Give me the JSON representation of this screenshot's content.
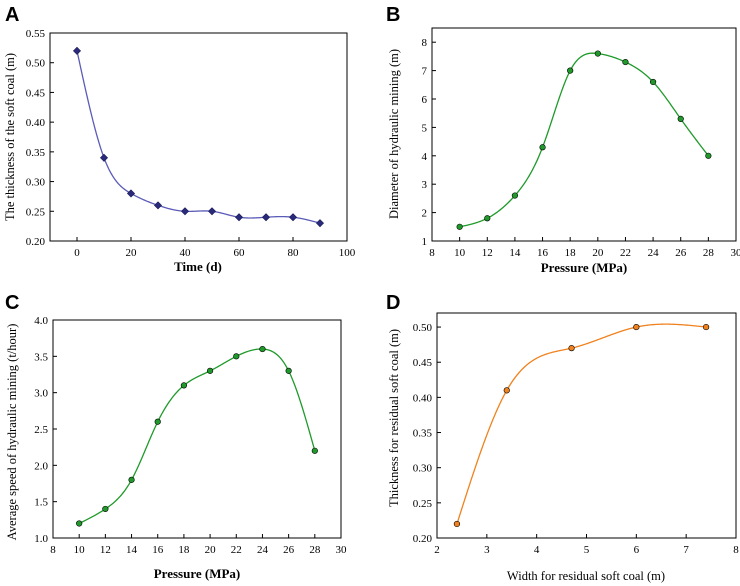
{
  "chart_data": [
    {
      "panel": "A",
      "type": "line",
      "xlabel": "Time (d)",
      "ylabel": "The thickness of the soft coal (m)",
      "xlim": [
        -10,
        100
      ],
      "ylim": [
        0.2,
        0.55
      ],
      "xticks": [
        0,
        20,
        40,
        60,
        80,
        100
      ],
      "yticks": [
        0.2,
        0.25,
        0.3,
        0.35,
        0.4,
        0.45,
        0.5,
        0.55
      ],
      "tick_decimals": 2,
      "marker": "diamond",
      "color": "#5b5bb8",
      "x": [
        0,
        10,
        20,
        30,
        40,
        50,
        60,
        70,
        80,
        90
      ],
      "y": [
        0.52,
        0.34,
        0.28,
        0.26,
        0.25,
        0.25,
        0.24,
        0.24,
        0.24,
        0.23
      ]
    },
    {
      "panel": "B",
      "type": "line",
      "xlabel": "Pressure (MPa)",
      "ylabel": "Diameter of hydraulic mining (m)",
      "xlim": [
        8,
        30
      ],
      "ylim": [
        1,
        8.5
      ],
      "xticks": [
        8,
        10,
        12,
        14,
        16,
        18,
        20,
        22,
        24,
        26,
        28,
        30
      ],
      "yticks": [
        1,
        2,
        3,
        4,
        5,
        6,
        7,
        8
      ],
      "tick_decimals": 0,
      "marker": "circle",
      "color": "#1f9a2a",
      "x": [
        10,
        12,
        14,
        16,
        18,
        20,
        22,
        24,
        26,
        28
      ],
      "y": [
        1.5,
        1.8,
        2.6,
        4.3,
        7.0,
        7.6,
        7.3,
        6.6,
        5.3,
        4.0
      ]
    },
    {
      "panel": "C",
      "type": "line",
      "xlabel": "Pressure (MPa)",
      "ylabel": "Average speed of hydraulic mining (t/hour)",
      "xlim": [
        8,
        30
      ],
      "ylim": [
        1.0,
        4.0
      ],
      "xticks": [
        8,
        10,
        12,
        14,
        16,
        18,
        20,
        22,
        24,
        26,
        28,
        30
      ],
      "yticks": [
        1.0,
        1.5,
        2.0,
        2.5,
        3.0,
        3.5,
        4.0
      ],
      "tick_decimals": 1,
      "marker": "circle",
      "color": "#1f9a2a",
      "x": [
        10,
        12,
        14,
        16,
        18,
        20,
        22,
        24,
        26,
        28
      ],
      "y": [
        1.2,
        1.4,
        1.8,
        2.6,
        3.1,
        3.3,
        3.5,
        3.6,
        3.3,
        2.2
      ]
    },
    {
      "panel": "D",
      "type": "line",
      "xlabel": "Width for residual soft coal (m)",
      "ylabel": "Thickness for residual soft coal (m)",
      "xlim": [
        2,
        8
      ],
      "ylim": [
        0.2,
        0.52
      ],
      "xticks": [
        2,
        3,
        4,
        5,
        6,
        7,
        8
      ],
      "yticks": [
        0.2,
        0.25,
        0.3,
        0.35,
        0.4,
        0.45,
        0.5
      ],
      "tick_decimals": 2,
      "marker": "circle",
      "color": "#f0821e",
      "x": [
        2.4,
        3.4,
        4.7,
        6.0,
        7.4
      ],
      "y": [
        0.22,
        0.41,
        0.47,
        0.5,
        0.5
      ]
    }
  ]
}
